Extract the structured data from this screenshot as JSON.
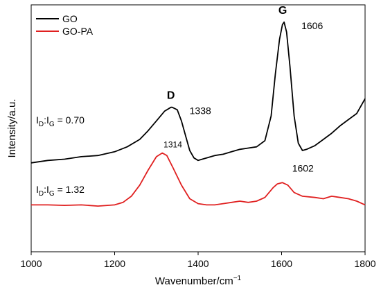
{
  "chart_data": {
    "type": "line",
    "title": "",
    "xlabel": "Wavenumber/cm",
    "xlabel_sup": "−1",
    "ylabel": "Intensity/a.u.",
    "xlim": [
      1000,
      1800
    ],
    "ylim": [
      0,
      1
    ],
    "xticks": [
      1000,
      1200,
      1400,
      1600,
      1800
    ],
    "xtick_labels": [
      "1000",
      "1200",
      "1400",
      "1600",
      "1800"
    ],
    "legend": {
      "position": "top-left",
      "entries": [
        {
          "name": "GO",
          "color": "#000000"
        },
        {
          "name": "GO-PA",
          "color": "#e02020"
        }
      ]
    },
    "series": [
      {
        "name": "GO",
        "color": "#000000",
        "x": [
          1000,
          1040,
          1080,
          1120,
          1160,
          1200,
          1230,
          1260,
          1280,
          1300,
          1320,
          1335,
          1338,
          1350,
          1360,
          1370,
          1380,
          1390,
          1400,
          1420,
          1440,
          1460,
          1480,
          1500,
          1520,
          1540,
          1560,
          1575,
          1585,
          1595,
          1602,
          1606,
          1612,
          1620,
          1630,
          1640,
          1650,
          1660,
          1680,
          1700,
          1720,
          1740,
          1760,
          1780,
          1800
        ],
        "y": [
          0.36,
          0.37,
          0.375,
          0.385,
          0.39,
          0.405,
          0.425,
          0.455,
          0.49,
          0.53,
          0.57,
          0.585,
          0.585,
          0.575,
          0.53,
          0.47,
          0.41,
          0.38,
          0.37,
          0.38,
          0.39,
          0.395,
          0.405,
          0.415,
          0.42,
          0.425,
          0.45,
          0.55,
          0.72,
          0.86,
          0.92,
          0.93,
          0.89,
          0.75,
          0.55,
          0.44,
          0.41,
          0.415,
          0.43,
          0.455,
          0.48,
          0.51,
          0.535,
          0.56,
          0.62
        ]
      },
      {
        "name": "GO-PA",
        "color": "#e02020",
        "x": [
          1000,
          1040,
          1080,
          1120,
          1160,
          1200,
          1220,
          1240,
          1260,
          1280,
          1300,
          1314,
          1325,
          1340,
          1360,
          1380,
          1400,
          1420,
          1440,
          1460,
          1480,
          1500,
          1520,
          1540,
          1560,
          1580,
          1590,
          1602,
          1615,
          1630,
          1650,
          1680,
          1700,
          1720,
          1740,
          1760,
          1780,
          1800
        ],
        "y": [
          0.19,
          0.19,
          0.188,
          0.19,
          0.185,
          0.19,
          0.2,
          0.225,
          0.27,
          0.33,
          0.385,
          0.4,
          0.39,
          0.34,
          0.27,
          0.215,
          0.195,
          0.19,
          0.19,
          0.195,
          0.2,
          0.205,
          0.2,
          0.205,
          0.22,
          0.26,
          0.275,
          0.28,
          0.27,
          0.24,
          0.225,
          0.22,
          0.215,
          0.225,
          0.22,
          0.215,
          0.205,
          0.19
        ]
      }
    ],
    "annotations": [
      {
        "text": "D",
        "bold": true,
        "series": "GO",
        "x": 1338
      },
      {
        "text": "1338",
        "series": "GO",
        "x": 1338
      },
      {
        "text": "G",
        "bold": true,
        "series": "GO",
        "x": 1606
      },
      {
        "text": "1606",
        "series": "GO",
        "x": 1606
      },
      {
        "text": "1314",
        "series": "GO-PA",
        "x": 1314
      },
      {
        "text": "1602",
        "series": "GO-PA",
        "x": 1602
      }
    ],
    "ratio_labels": [
      {
        "series": "GO",
        "prefix": "I",
        "sub1": "D",
        "mid": ":I",
        "sub2": "G",
        "value": " = 0.70"
      },
      {
        "series": "GO-PA",
        "prefix": "I",
        "sub1": "D",
        "mid": ":I",
        "sub2": "G",
        "value": " = 1.32"
      }
    ]
  }
}
